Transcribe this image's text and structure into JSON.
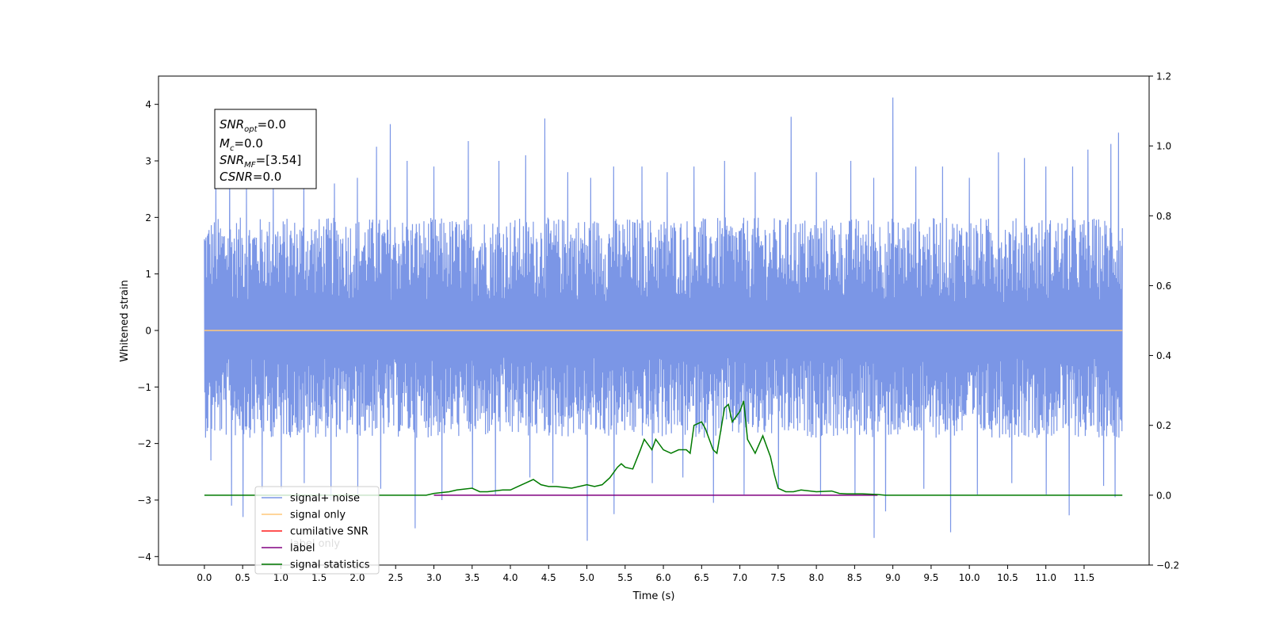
{
  "chart_data": {
    "type": "line",
    "xlabel": "Time (s)",
    "ylabel": "Whitened strain",
    "xlim": [
      -0.6,
      12.35
    ],
    "ylim": [
      -4.15,
      4.5
    ],
    "ylim_right": [
      -0.2,
      1.2
    ],
    "grid": false,
    "legend_position": "bottom-left",
    "x_ticks": [
      0.0,
      0.5,
      1.0,
      1.5,
      2.0,
      2.5,
      3.0,
      3.5,
      4.0,
      4.5,
      5.0,
      5.5,
      6.0,
      6.5,
      7.0,
      7.5,
      8.0,
      8.5,
      9.0,
      9.5,
      10.0,
      10.5,
      11.0,
      11.5
    ],
    "x_tick_labels": [
      "0.0",
      "0.5",
      "1.0",
      "1.5",
      "2.0",
      "2.5",
      "3.0",
      "3.5",
      "4.0",
      "4.5",
      "5.0",
      "5.5",
      "6.0",
      "6.5",
      "7.0",
      "7.5",
      "8.0",
      "8.5",
      "9.0",
      "9.5",
      "10.0",
      "10.5",
      "11.0",
      "11.5"
    ],
    "y_ticks_left": [
      -4,
      -3,
      -2,
      -1,
      0,
      1,
      2,
      3,
      4
    ],
    "y_tick_labels_left": [
      "−4",
      "−3",
      "−2",
      "−1",
      "0",
      "1",
      "2",
      "3",
      "4"
    ],
    "y_ticks_right": [
      -0.2,
      0.0,
      0.2,
      0.4,
      0.6,
      0.8,
      1.0,
      1.2
    ],
    "y_tick_labels_right": [
      "−0.2",
      "0.0",
      "0.2",
      "0.4",
      "0.6",
      "0.8",
      "1.0",
      "1.2"
    ],
    "info_box": {
      "snr_opt": {
        "name": "SNR",
        "sub": "opt",
        "value": "=0.0"
      },
      "mc": {
        "name": "M",
        "sub": "c",
        "value": "=0.0"
      },
      "snr_mf": {
        "name": "SNR",
        "sub": "MF",
        "value": "=[3.54]"
      },
      "csnr": {
        "name": "CSNR",
        "sub": "",
        "value": "=0.0"
      }
    },
    "legend": [
      {
        "label": "signal+ noise",
        "color": "#7b96e6"
      },
      {
        "label": "signal only",
        "color": "#ffc77a"
      },
      {
        "label": "cumilative SNR",
        "color": "#ff1a1a"
      },
      {
        "label": "label",
        "color": "#800080"
      },
      {
        "label": "signal statistics",
        "color": "#007a00"
      }
    ],
    "legend_hidden_text": "label only",
    "series": [
      {
        "name": "signal+ noise",
        "axis": "left",
        "color": "#7b96e6",
        "x_range": [
          0.0,
          12.0
        ],
        "typical_range": [
          -1.9,
          2.0
        ],
        "peaks_up": [
          [
            0.15,
            2.7
          ],
          [
            0.33,
            2.9
          ],
          [
            0.55,
            2.5
          ],
          [
            0.9,
            2.8
          ],
          [
            1.3,
            2.9
          ],
          [
            1.7,
            2.6
          ],
          [
            2.0,
            2.7
          ],
          [
            2.25,
            3.25
          ],
          [
            2.43,
            3.65
          ],
          [
            2.65,
            3.0
          ],
          [
            3.0,
            2.9
          ],
          [
            3.45,
            3.35
          ],
          [
            3.85,
            3.0
          ],
          [
            4.2,
            3.1
          ],
          [
            4.45,
            3.75
          ],
          [
            4.75,
            2.8
          ],
          [
            5.05,
            2.7
          ],
          [
            5.35,
            2.9
          ],
          [
            5.72,
            2.9
          ],
          [
            6.05,
            2.8
          ],
          [
            6.4,
            2.9
          ],
          [
            6.8,
            3.0
          ],
          [
            7.2,
            2.8
          ],
          [
            7.67,
            3.78
          ],
          [
            8.0,
            2.8
          ],
          [
            8.45,
            3.0
          ],
          [
            8.75,
            2.7
          ],
          [
            9.0,
            4.12
          ],
          [
            9.3,
            2.9
          ],
          [
            9.65,
            2.9
          ],
          [
            10.0,
            2.7
          ],
          [
            10.38,
            3.15
          ],
          [
            10.72,
            3.05
          ],
          [
            11.0,
            2.9
          ],
          [
            11.35,
            2.9
          ],
          [
            11.55,
            3.2
          ],
          [
            11.85,
            3.3
          ],
          [
            11.95,
            3.5
          ]
        ],
        "peaks_down": [
          [
            0.08,
            -2.3
          ],
          [
            0.35,
            -3.1
          ],
          [
            0.5,
            -3.3
          ],
          [
            0.75,
            -2.8
          ],
          [
            1.0,
            -2.8
          ],
          [
            1.3,
            -2.7
          ],
          [
            1.65,
            -3.0
          ],
          [
            2.0,
            -2.9
          ],
          [
            2.3,
            -2.8
          ],
          [
            2.75,
            -3.5
          ],
          [
            3.1,
            -3.0
          ],
          [
            3.5,
            -2.8
          ],
          [
            3.8,
            -2.9
          ],
          [
            4.25,
            -2.6
          ],
          [
            4.55,
            -2.7
          ],
          [
            5.0,
            -3.72
          ],
          [
            5.35,
            -3.25
          ],
          [
            5.85,
            -2.7
          ],
          [
            6.25,
            -2.6
          ],
          [
            6.65,
            -3.05
          ],
          [
            7.05,
            -2.9
          ],
          [
            7.5,
            -2.8
          ],
          [
            8.05,
            -2.9
          ],
          [
            8.5,
            -2.9
          ],
          [
            8.75,
            -3.67
          ],
          [
            8.9,
            -3.2
          ],
          [
            9.4,
            -2.8
          ],
          [
            9.75,
            -3.57
          ],
          [
            10.1,
            -2.9
          ],
          [
            10.55,
            -2.7
          ],
          [
            11.0,
            -2.9
          ],
          [
            11.3,
            -3.27
          ],
          [
            11.75,
            -2.75
          ],
          [
            11.9,
            -2.95
          ]
        ]
      },
      {
        "name": "signal only",
        "axis": "left",
        "color": "#ffc77a",
        "x": [
          0.0,
          12.0
        ],
        "y": [
          0.0,
          0.0
        ]
      },
      {
        "name": "label",
        "axis": "right",
        "color": "#800080",
        "x": [
          3.0,
          8.8
        ],
        "y": [
          0.0,
          0.0
        ]
      },
      {
        "name": "signal statistics",
        "axis": "right",
        "color": "#007a00",
        "x": [
          0.0,
          2.9,
          3.0,
          3.2,
          3.3,
          3.5,
          3.6,
          3.7,
          3.9,
          4.0,
          4.1,
          4.2,
          4.3,
          4.4,
          4.5,
          4.6,
          4.8,
          5.0,
          5.1,
          5.2,
          5.3,
          5.4,
          5.45,
          5.5,
          5.6,
          5.7,
          5.75,
          5.85,
          5.9,
          6.0,
          6.1,
          6.2,
          6.3,
          6.35,
          6.4,
          6.5,
          6.55,
          6.6,
          6.65,
          6.7,
          6.8,
          6.85,
          6.9,
          7.0,
          7.05,
          7.1,
          7.2,
          7.3,
          7.4,
          7.45,
          7.5,
          7.6,
          7.7,
          7.8,
          8.0,
          8.2,
          8.3,
          8.4,
          8.6,
          8.8,
          8.9,
          9.0,
          12.0
        ],
        "y": [
          0.0,
          0.0,
          0.005,
          0.01,
          0.015,
          0.02,
          0.01,
          0.01,
          0.015,
          0.015,
          0.025,
          0.035,
          0.045,
          0.03,
          0.025,
          0.025,
          0.02,
          0.03,
          0.025,
          0.03,
          0.05,
          0.08,
          0.09,
          0.08,
          0.075,
          0.13,
          0.16,
          0.13,
          0.16,
          0.13,
          0.12,
          0.13,
          0.13,
          0.12,
          0.2,
          0.21,
          0.19,
          0.16,
          0.13,
          0.12,
          0.25,
          0.26,
          0.21,
          0.24,
          0.27,
          0.16,
          0.12,
          0.17,
          0.11,
          0.06,
          0.02,
          0.01,
          0.01,
          0.015,
          0.01,
          0.012,
          0.005,
          0.004,
          0.004,
          0.002,
          0.0,
          0.0,
          0.0
        ]
      }
    ]
  }
}
